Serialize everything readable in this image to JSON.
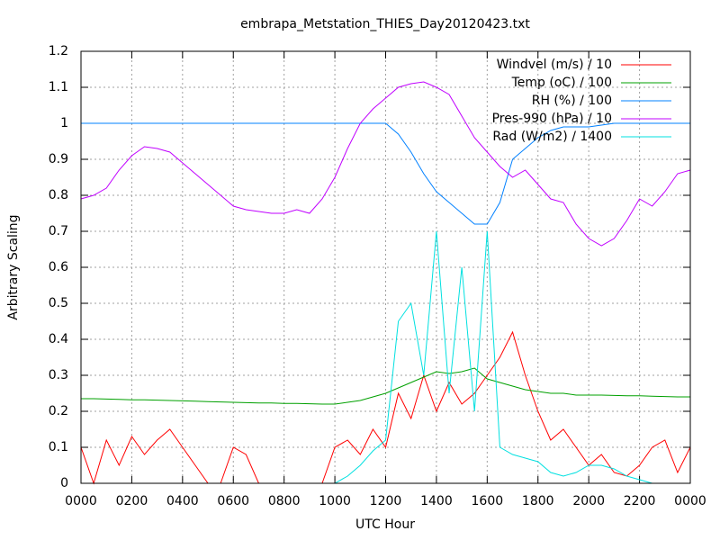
{
  "chart_data": {
    "type": "line",
    "title": "embrapa_Metstation_THIES_Day20120423.txt",
    "x_label": "UTC Hour",
    "y_label": "Arbitrary Scaling",
    "legend": "top-right",
    "grid": true,
    "xlim": [
      0,
      24
    ],
    "xticks": [
      {
        "value": 0,
        "label": "0000"
      },
      {
        "value": 2,
        "label": "0200"
      },
      {
        "value": 4,
        "label": "0400"
      },
      {
        "value": 6,
        "label": "0600"
      },
      {
        "value": 8,
        "label": "0800"
      },
      {
        "value": 10,
        "label": "1000"
      },
      {
        "value": 12,
        "label": "1200"
      },
      {
        "value": 14,
        "label": "1400"
      },
      {
        "value": 16,
        "label": "1600"
      },
      {
        "value": 18,
        "label": "1800"
      },
      {
        "value": 20,
        "label": "2000"
      },
      {
        "value": 22,
        "label": "2200"
      },
      {
        "value": 24,
        "label": "0000"
      }
    ],
    "ylim": [
      0,
      1.2
    ],
    "yticks": [
      0,
      0.1,
      0.2,
      0.3,
      0.4,
      0.5,
      0.6,
      0.7,
      0.8,
      0.9,
      1,
      1.1,
      1.2
    ],
    "x": [
      0,
      0.5,
      1,
      1.5,
      2,
      2.5,
      3,
      3.5,
      4,
      4.5,
      5,
      5.5,
      6,
      6.5,
      7,
      7.5,
      8,
      8.5,
      9,
      9.5,
      10,
      10.5,
      11,
      11.5,
      12,
      12.5,
      13,
      13.5,
      14,
      14.5,
      15,
      15.5,
      16,
      16.5,
      17,
      17.5,
      18,
      18.5,
      19,
      19.5,
      20,
      20.5,
      21,
      21.5,
      22,
      22.5,
      23,
      23.5,
      24
    ],
    "series": [
      {
        "name": "Windvel (m/s) / 10",
        "color": "#ff0000",
        "values": [
          0.1,
          0,
          0.12,
          0.05,
          0.13,
          0.08,
          0.12,
          0.15,
          0.1,
          0.05,
          0,
          0,
          0.1,
          0.08,
          0,
          0,
          0,
          0,
          0,
          0,
          0.1,
          0.12,
          0.08,
          0.15,
          0.1,
          0.25,
          0.18,
          0.3,
          0.2,
          0.28,
          0.22,
          0.25,
          0.3,
          0.35,
          0.42,
          0.3,
          0.2,
          0.12,
          0.15,
          0.1,
          0.05,
          0.08,
          0.03,
          0.02,
          0.05,
          0.1,
          0.12,
          0.03,
          0.1
        ]
      },
      {
        "name": "Temp (oC) / 100",
        "color": "#00a000",
        "values": [
          0.235,
          0.235,
          0.234,
          0.233,
          0.232,
          0.232,
          0.231,
          0.23,
          0.229,
          0.228,
          0.227,
          0.226,
          0.225,
          0.224,
          0.223,
          0.223,
          0.222,
          0.222,
          0.221,
          0.22,
          0.22,
          0.225,
          0.23,
          0.24,
          0.25,
          0.265,
          0.28,
          0.295,
          0.31,
          0.305,
          0.31,
          0.32,
          0.29,
          0.28,
          0.27,
          0.26,
          0.255,
          0.25,
          0.25,
          0.245,
          0.245,
          0.245,
          0.244,
          0.243,
          0.243,
          0.242,
          0.241,
          0.24,
          0.24
        ]
      },
      {
        "name": "RH (%) / 100",
        "color": "#0080ff",
        "values": [
          1,
          1,
          1,
          1,
          1,
          1,
          1,
          1,
          1,
          1,
          1,
          1,
          1,
          1,
          1,
          1,
          1,
          1,
          1,
          1,
          1,
          1,
          1,
          1,
          1,
          0.97,
          0.92,
          0.86,
          0.81,
          0.78,
          0.75,
          0.72,
          0.72,
          0.78,
          0.9,
          0.93,
          0.96,
          0.98,
          0.99,
          0.99,
          0.99,
          0.995,
          1,
          1,
          1,
          1,
          1,
          1,
          1
        ]
      },
      {
        "name": "Pres-990 (hPa) / 10",
        "color": "#c000ff",
        "values": [
          0.79,
          0.8,
          0.82,
          0.87,
          0.91,
          0.935,
          0.93,
          0.92,
          0.89,
          0.86,
          0.83,
          0.8,
          0.77,
          0.76,
          0.755,
          0.75,
          0.75,
          0.76,
          0.75,
          0.79,
          0.85,
          0.93,
          1,
          1.04,
          1.07,
          1.1,
          1.11,
          1.115,
          1.1,
          1.08,
          1.02,
          0.96,
          0.92,
          0.88,
          0.85,
          0.87,
          0.83,
          0.79,
          0.78,
          0.72,
          0.68,
          0.66,
          0.68,
          0.73,
          0.79,
          0.77,
          0.81,
          0.86,
          0.87
        ]
      },
      {
        "name": "Rad (W/m2) / 1400",
        "color": "#00e0e0",
        "values": [
          0,
          0,
          0,
          0,
          0,
          0,
          0,
          0,
          0,
          0,
          0,
          0,
          0,
          0,
          0,
          0,
          0,
          0,
          0,
          0,
          0,
          0.02,
          0.05,
          0.09,
          0.12,
          0.45,
          0.5,
          0.3,
          0.7,
          0.25,
          0.6,
          0.2,
          0.7,
          0.1,
          0.08,
          0.07,
          0.06,
          0.03,
          0.02,
          0.03,
          0.05,
          0.05,
          0.04,
          0.02,
          0.01,
          0,
          0,
          0,
          0
        ]
      }
    ]
  }
}
